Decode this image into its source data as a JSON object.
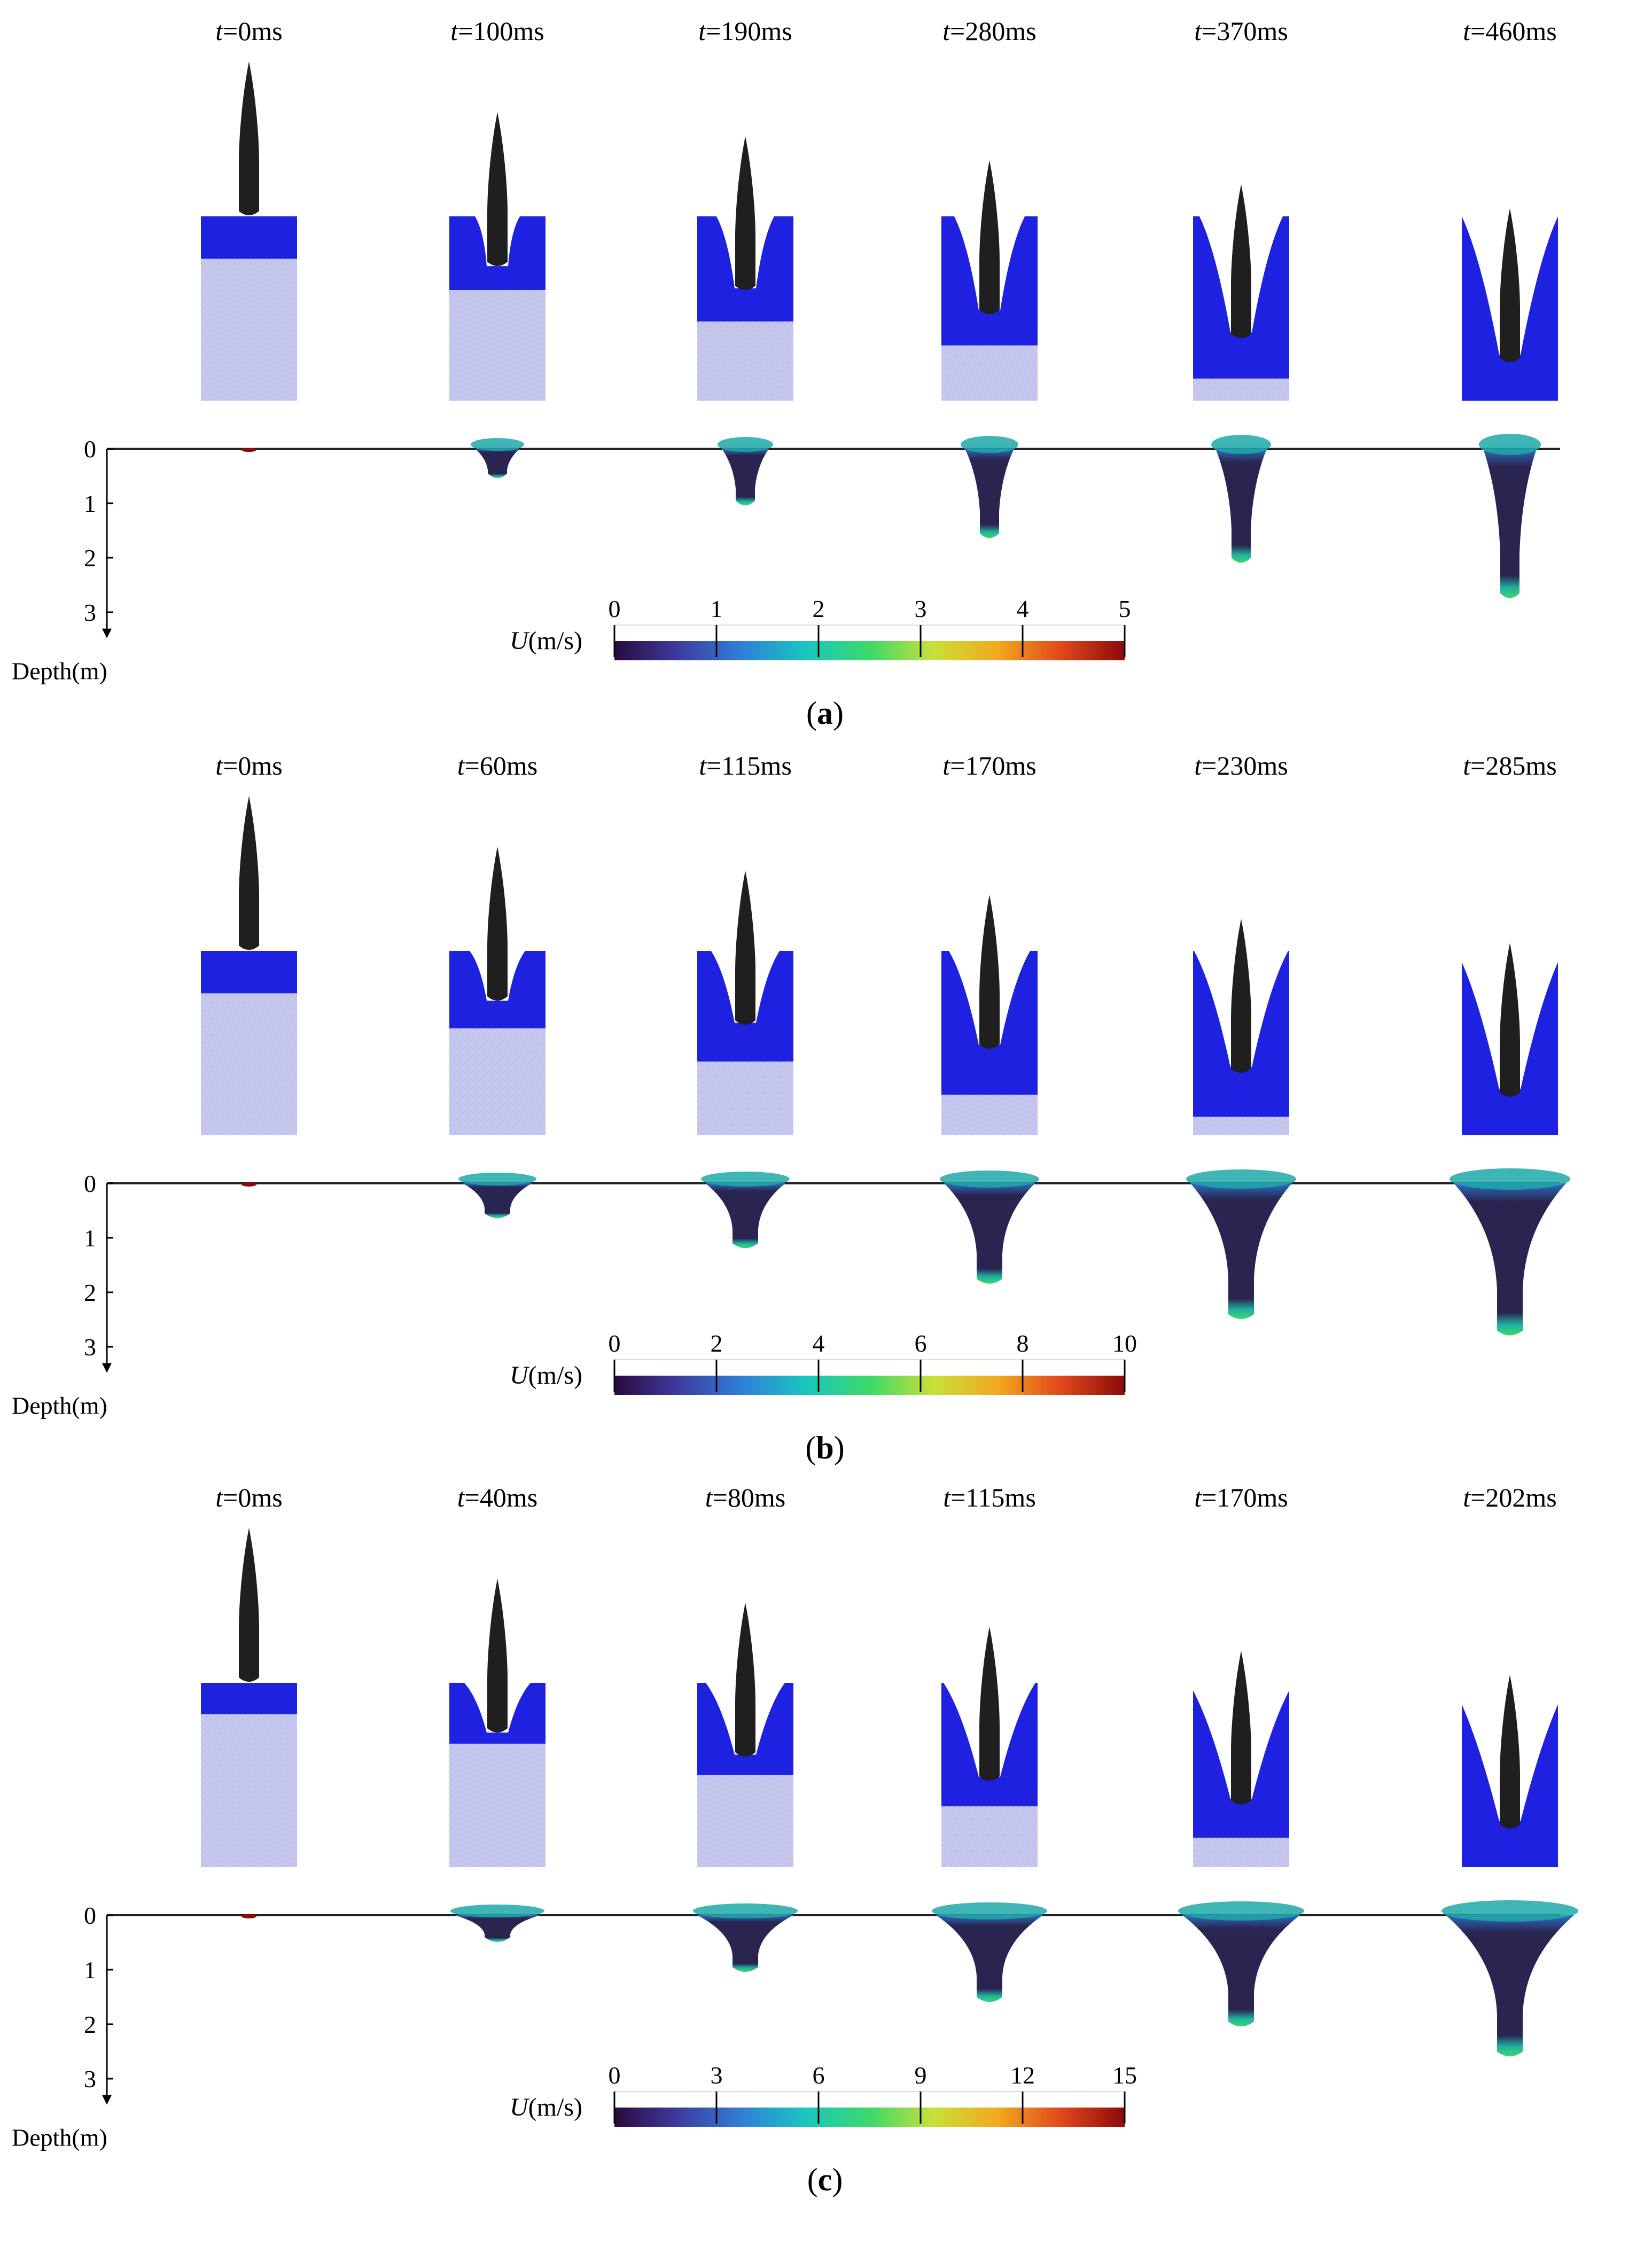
{
  "panels": [
    {
      "label_open": "(",
      "label_letter": "a",
      "label_close": ")",
      "time_prefix": "t",
      "times": [
        "=0ms",
        "=100ms",
        "=190ms",
        "=280ms",
        "=370ms",
        "=460ms"
      ],
      "water_fill": [
        0.23,
        0.4,
        0.57,
        0.7,
        0.88,
        1.0
      ],
      "cavity_depth": [
        0.02,
        0.55,
        1.05,
        1.65,
        2.1,
        2.75
      ],
      "colorbar": {
        "title_var": "U",
        "title_unit": "(m/s)",
        "ticks": [
          "0",
          "1",
          "2",
          "3",
          "4",
          "5"
        ],
        "min": 0,
        "max": 5
      }
    },
    {
      "label_open": "(",
      "label_letter": "b",
      "label_close": ")",
      "time_prefix": "t",
      "times": [
        "=0ms",
        "=60ms",
        "=115ms",
        "=170ms",
        "=230ms",
        "=285ms"
      ],
      "water_fill": [
        0.23,
        0.42,
        0.6,
        0.78,
        0.9,
        1.0
      ],
      "cavity_depth": [
        0.02,
        0.65,
        1.2,
        1.85,
        2.5,
        2.8
      ],
      "colorbar": {
        "title_var": "U",
        "title_unit": "(m/s)",
        "ticks": [
          "0",
          "2",
          "4",
          "6",
          "8",
          "10"
        ],
        "min": 0,
        "max": 10
      }
    },
    {
      "label_open": "(",
      "label_letter": "c",
      "label_close": ")",
      "time_prefix": "t",
      "times": [
        "=0ms",
        "=40ms",
        "=80ms",
        "=115ms",
        "=170ms",
        "=202ms"
      ],
      "water_fill": [
        0.17,
        0.33,
        0.5,
        0.67,
        0.84,
        1.0
      ],
      "cavity_depth": [
        0.0,
        0.5,
        1.05,
        1.6,
        2.05,
        2.6
      ],
      "colorbar": {
        "title_var": "U",
        "title_unit": "(m/s)",
        "ticks": [
          "0",
          "3",
          "6",
          "9",
          "12",
          "15"
        ],
        "min": 0,
        "max": 15
      }
    }
  ],
  "depth_axis": {
    "ticks": [
      "0",
      "1",
      "2",
      "3"
    ],
    "title": "Depth(m)"
  },
  "colors": {
    "water": "#1e22e0",
    "water_light": "#c7c8ee",
    "projectile": "#1f1f1f",
    "cavity_dark": "#2a2450"
  },
  "colormap": [
    "#2b0a3d",
    "#3d3b9e",
    "#2f7fd8",
    "#19c6c0",
    "#3cd96a",
    "#c9e03a",
    "#f2a91f",
    "#e0481c",
    "#8b0a0a"
  ]
}
